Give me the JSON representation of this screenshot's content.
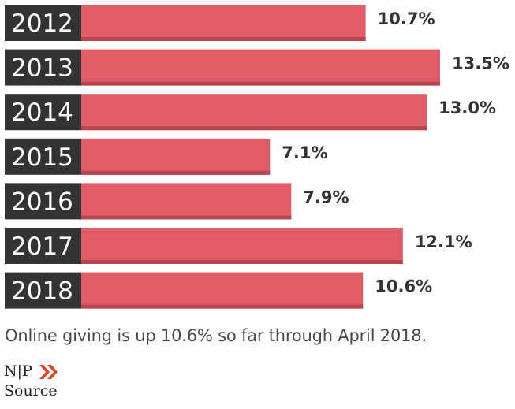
{
  "chart_data": {
    "type": "bar",
    "orientation": "horizontal",
    "categories": [
      "2012",
      "2013",
      "2014",
      "2015",
      "2016",
      "2017",
      "2018"
    ],
    "values": [
      10.7,
      13.5,
      13.0,
      7.1,
      7.9,
      12.1,
      10.6
    ],
    "value_labels": [
      "10.7%",
      "13.5%",
      "13.0%",
      "7.1%",
      "7.9%",
      "12.1%",
      "10.6%"
    ],
    "unit": "%",
    "grid": false,
    "legend": "none",
    "colors": {
      "bar": "#e05c66",
      "bar_shadow": "#b84550",
      "label_box": "#333333",
      "label_text": "#ffffff",
      "value_text": "#333333"
    }
  },
  "caption": "Online giving is up 10.6% so far through April 2018.",
  "logo": {
    "top_text": "N|P",
    "bottom_text": "Source",
    "icon": "double-chevron-right-icon",
    "accent": "#e0442e"
  }
}
